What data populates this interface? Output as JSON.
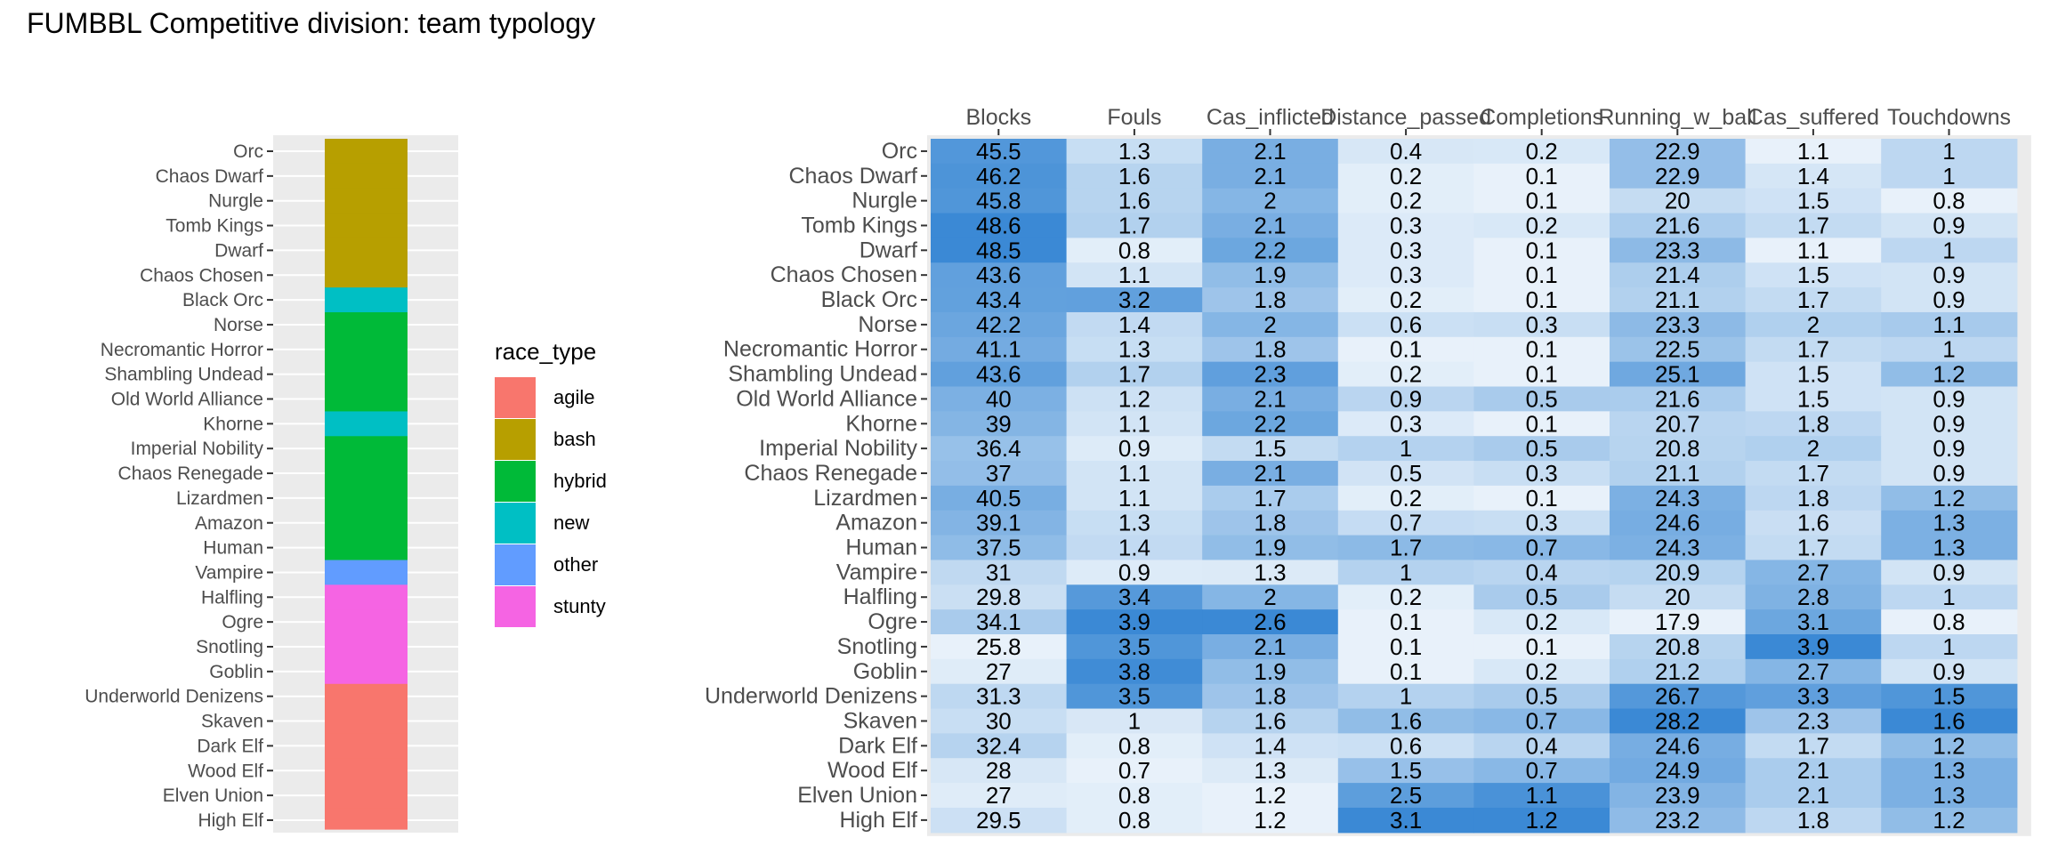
{
  "title": "FUMBBL Competitive division: team typology",
  "legend": {
    "title": "race_type",
    "items": [
      {
        "label": "agile",
        "color": "#F8766D"
      },
      {
        "label": "bash",
        "color": "#B79F00"
      },
      {
        "label": "hybrid",
        "color": "#00BA38"
      },
      {
        "label": "new",
        "color": "#00BFC4"
      },
      {
        "label": "other",
        "color": "#619CFF"
      },
      {
        "label": "stunty",
        "color": "#F564E3"
      }
    ]
  },
  "chart_data": [
    {
      "type": "bar",
      "categories": [
        "Orc",
        "Chaos Dwarf",
        "Nurgle",
        "Tomb Kings",
        "Dwarf",
        "Chaos Chosen",
        "Black Orc",
        "Norse",
        "Necromantic Horror",
        "Shambling Undead",
        "Old World Alliance",
        "Khorne",
        "Imperial Nobility",
        "Chaos Renegade",
        "Lizardmen",
        "Amazon",
        "Human",
        "Vampire",
        "Halfling",
        "Ogre",
        "Snotling",
        "Goblin",
        "Underworld Denizens",
        "Skaven",
        "Dark Elf",
        "Wood Elf",
        "Elven Union",
        "High Elf"
      ],
      "race_type": [
        "bash",
        "bash",
        "bash",
        "bash",
        "bash",
        "bash",
        "new",
        "hybrid",
        "hybrid",
        "hybrid",
        "hybrid",
        "new",
        "hybrid",
        "hybrid",
        "hybrid",
        "hybrid",
        "hybrid",
        "other",
        "stunty",
        "stunty",
        "stunty",
        "stunty",
        "agile",
        "agile",
        "agile",
        "agile",
        "agile",
        "agile"
      ],
      "legend_title": "race_type"
    },
    {
      "type": "heatmap",
      "columns": [
        "Blocks",
        "Fouls",
        "Cas_inflicted",
        "Distance_passed",
        "Completions",
        "Running_w_ball",
        "Cas_suffered",
        "Touchdowns"
      ],
      "rows": [
        "Orc",
        "Chaos Dwarf",
        "Nurgle",
        "Tomb Kings",
        "Dwarf",
        "Chaos Chosen",
        "Black Orc",
        "Norse",
        "Necromantic Horror",
        "Shambling Undead",
        "Old World Alliance",
        "Khorne",
        "Imperial Nobility",
        "Chaos Renegade",
        "Lizardmen",
        "Amazon",
        "Human",
        "Vampire",
        "Halfling",
        "Ogre",
        "Snotling",
        "Goblin",
        "Underworld Denizens",
        "Skaven",
        "Dark Elf",
        "Wood Elf",
        "Elven Union",
        "High Elf"
      ],
      "values": [
        [
          "45.5",
          "1.3",
          "2.1",
          "0.4",
          "0.2",
          "22.9",
          "1.1",
          "1"
        ],
        [
          "46.2",
          "1.6",
          "2.1",
          "0.2",
          "0.1",
          "22.9",
          "1.4",
          "1"
        ],
        [
          "45.8",
          "1.6",
          "2",
          "0.2",
          "0.1",
          "20",
          "1.5",
          "0.8"
        ],
        [
          "48.6",
          "1.7",
          "2.1",
          "0.3",
          "0.2",
          "21.6",
          "1.7",
          "0.9"
        ],
        [
          "48.5",
          "0.8",
          "2.2",
          "0.3",
          "0.1",
          "23.3",
          "1.1",
          "1"
        ],
        [
          "43.6",
          "1.1",
          "1.9",
          "0.3",
          "0.1",
          "21.4",
          "1.5",
          "0.9"
        ],
        [
          "43.4",
          "3.2",
          "1.8",
          "0.2",
          "0.1",
          "21.1",
          "1.7",
          "0.9"
        ],
        [
          "42.2",
          "1.4",
          "2",
          "0.6",
          "0.3",
          "23.3",
          "2",
          "1.1"
        ],
        [
          "41.1",
          "1.3",
          "1.8",
          "0.1",
          "0.1",
          "22.5",
          "1.7",
          "1"
        ],
        [
          "43.6",
          "1.7",
          "2.3",
          "0.2",
          "0.1",
          "25.1",
          "1.5",
          "1.2"
        ],
        [
          "40",
          "1.2",
          "2.1",
          "0.9",
          "0.5",
          "21.6",
          "1.5",
          "0.9"
        ],
        [
          "39",
          "1.1",
          "2.2",
          "0.3",
          "0.1",
          "20.7",
          "1.8",
          "0.9"
        ],
        [
          "36.4",
          "0.9",
          "1.5",
          "1",
          "0.5",
          "20.8",
          "2",
          "0.9"
        ],
        [
          "37",
          "1.1",
          "2.1",
          "0.5",
          "0.3",
          "21.1",
          "1.7",
          "0.9"
        ],
        [
          "40.5",
          "1.1",
          "1.7",
          "0.2",
          "0.1",
          "24.3",
          "1.8",
          "1.2"
        ],
        [
          "39.1",
          "1.3",
          "1.8",
          "0.7",
          "0.3",
          "24.6",
          "1.6",
          "1.3"
        ],
        [
          "37.5",
          "1.4",
          "1.9",
          "1.7",
          "0.7",
          "24.3",
          "1.7",
          "1.3"
        ],
        [
          "31",
          "0.9",
          "1.3",
          "1",
          "0.4",
          "20.9",
          "2.7",
          "0.9"
        ],
        [
          "29.8",
          "3.4",
          "2",
          "0.2",
          "0.5",
          "20",
          "2.8",
          "1"
        ],
        [
          "34.1",
          "3.9",
          "2.6",
          "0.1",
          "0.2",
          "17.9",
          "3.1",
          "0.8"
        ],
        [
          "25.8",
          "3.5",
          "2.1",
          "0.1",
          "0.1",
          "20.8",
          "3.9",
          "1"
        ],
        [
          "27",
          "3.8",
          "1.9",
          "0.1",
          "0.2",
          "21.2",
          "2.7",
          "0.9"
        ],
        [
          "31.3",
          "3.5",
          "1.8",
          "1",
          "0.5",
          "26.7",
          "3.3",
          "1.5"
        ],
        [
          "30",
          "1",
          "1.6",
          "1.6",
          "0.7",
          "28.2",
          "2.3",
          "1.6"
        ],
        [
          "32.4",
          "0.8",
          "1.4",
          "0.6",
          "0.4",
          "24.6",
          "1.7",
          "1.2"
        ],
        [
          "28",
          "0.7",
          "1.3",
          "1.5",
          "0.7",
          "24.9",
          "2.1",
          "1.3"
        ],
        [
          "27",
          "0.8",
          "1.2",
          "2.5",
          "1.1",
          "23.9",
          "2.1",
          "1.3"
        ],
        [
          "29.5",
          "0.8",
          "1.2",
          "3.1",
          "1.2",
          "23.2",
          "1.8",
          "1.2"
        ]
      ],
      "color_low": "#FFFFFF",
      "color_high": "#1874CD"
    }
  ]
}
